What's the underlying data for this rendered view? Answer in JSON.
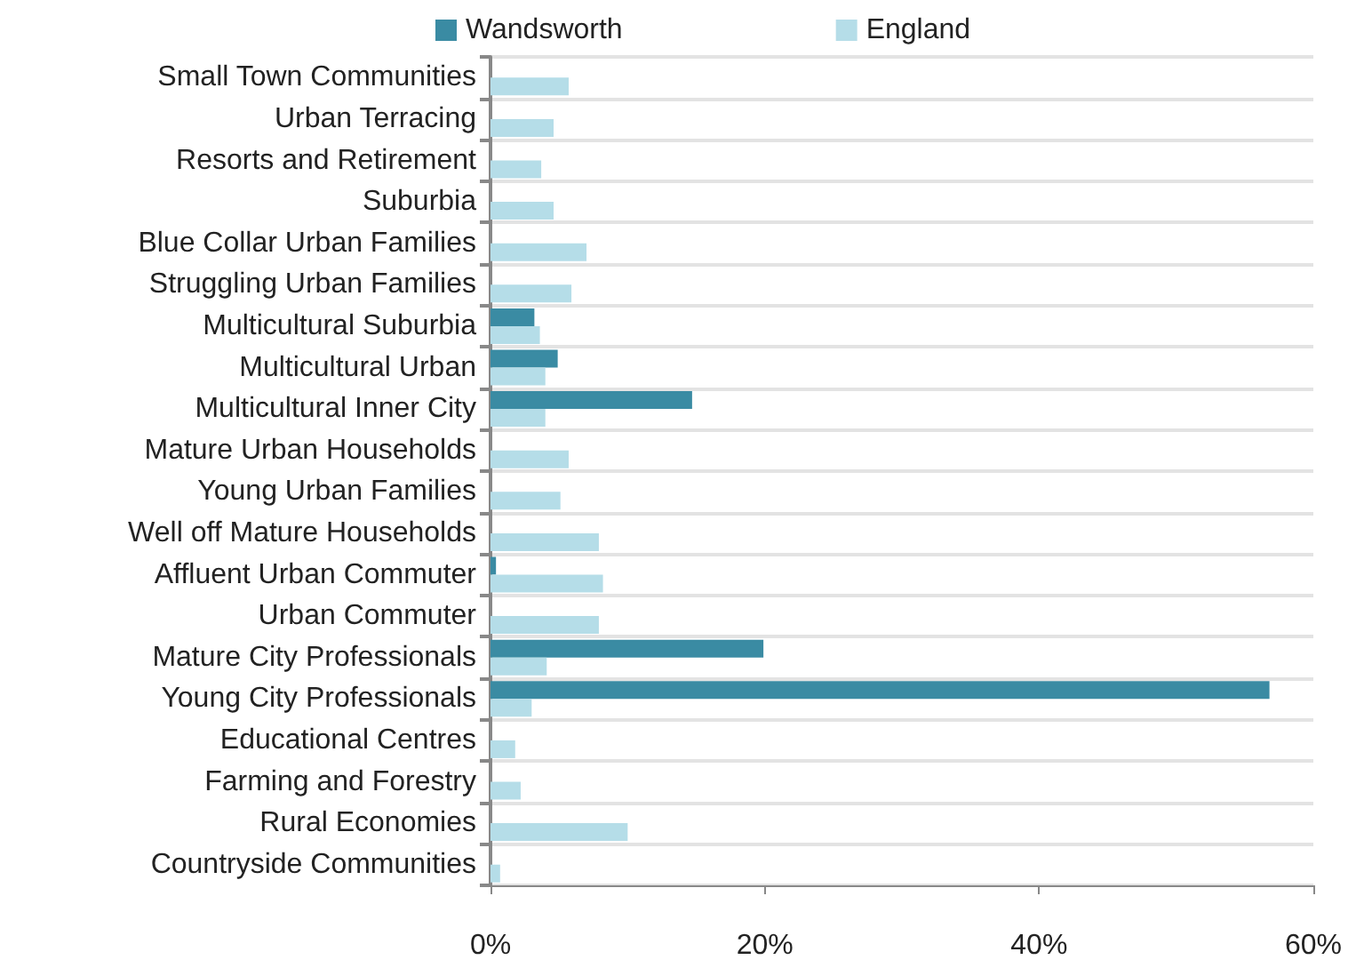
{
  "chart_data": {
    "type": "bar",
    "orientation": "horizontal",
    "categories": [
      "Small Town Communities",
      "Urban Terracing",
      "Resorts and Retirement",
      "Suburbia",
      "Blue Collar Urban Families",
      "Struggling Urban Families",
      "Multicultural Suburbia",
      "Multicultural Urban",
      "Multicultural Inner City",
      "Mature Urban Households",
      "Young Urban Families",
      "Well off Mature Households",
      "Affluent Urban Commuter",
      "Urban Commuter",
      "Mature City Professionals",
      "Young City Professionals",
      "Educational Centres",
      "Farming and Forestry",
      "Rural Economies",
      "Countryside Communities"
    ],
    "series": [
      {
        "name": "Wandsworth",
        "color": "#3a8ba3",
        "values": [
          null,
          null,
          null,
          null,
          null,
          null,
          3.2,
          4.9,
          14.7,
          null,
          null,
          null,
          0.4,
          null,
          19.9,
          56.8,
          null,
          null,
          null,
          null
        ]
      },
      {
        "name": "England",
        "color": "#b5dde8",
        "values": [
          5.7,
          4.6,
          3.7,
          4.6,
          7.0,
          5.9,
          3.6,
          4.0,
          4.0,
          5.7,
          5.1,
          7.9,
          8.2,
          7.9,
          4.1,
          3.0,
          1.8,
          2.2,
          10.0,
          0.7
        ]
      }
    ],
    "xlim": [
      0,
      60
    ],
    "xticks": [
      {
        "value": 0,
        "label": "0%"
      },
      {
        "value": 20,
        "label": "20%"
      },
      {
        "value": 40,
        "label": "40%"
      },
      {
        "value": 60,
        "label": "60%"
      }
    ],
    "grid": "y",
    "legend": "top"
  }
}
